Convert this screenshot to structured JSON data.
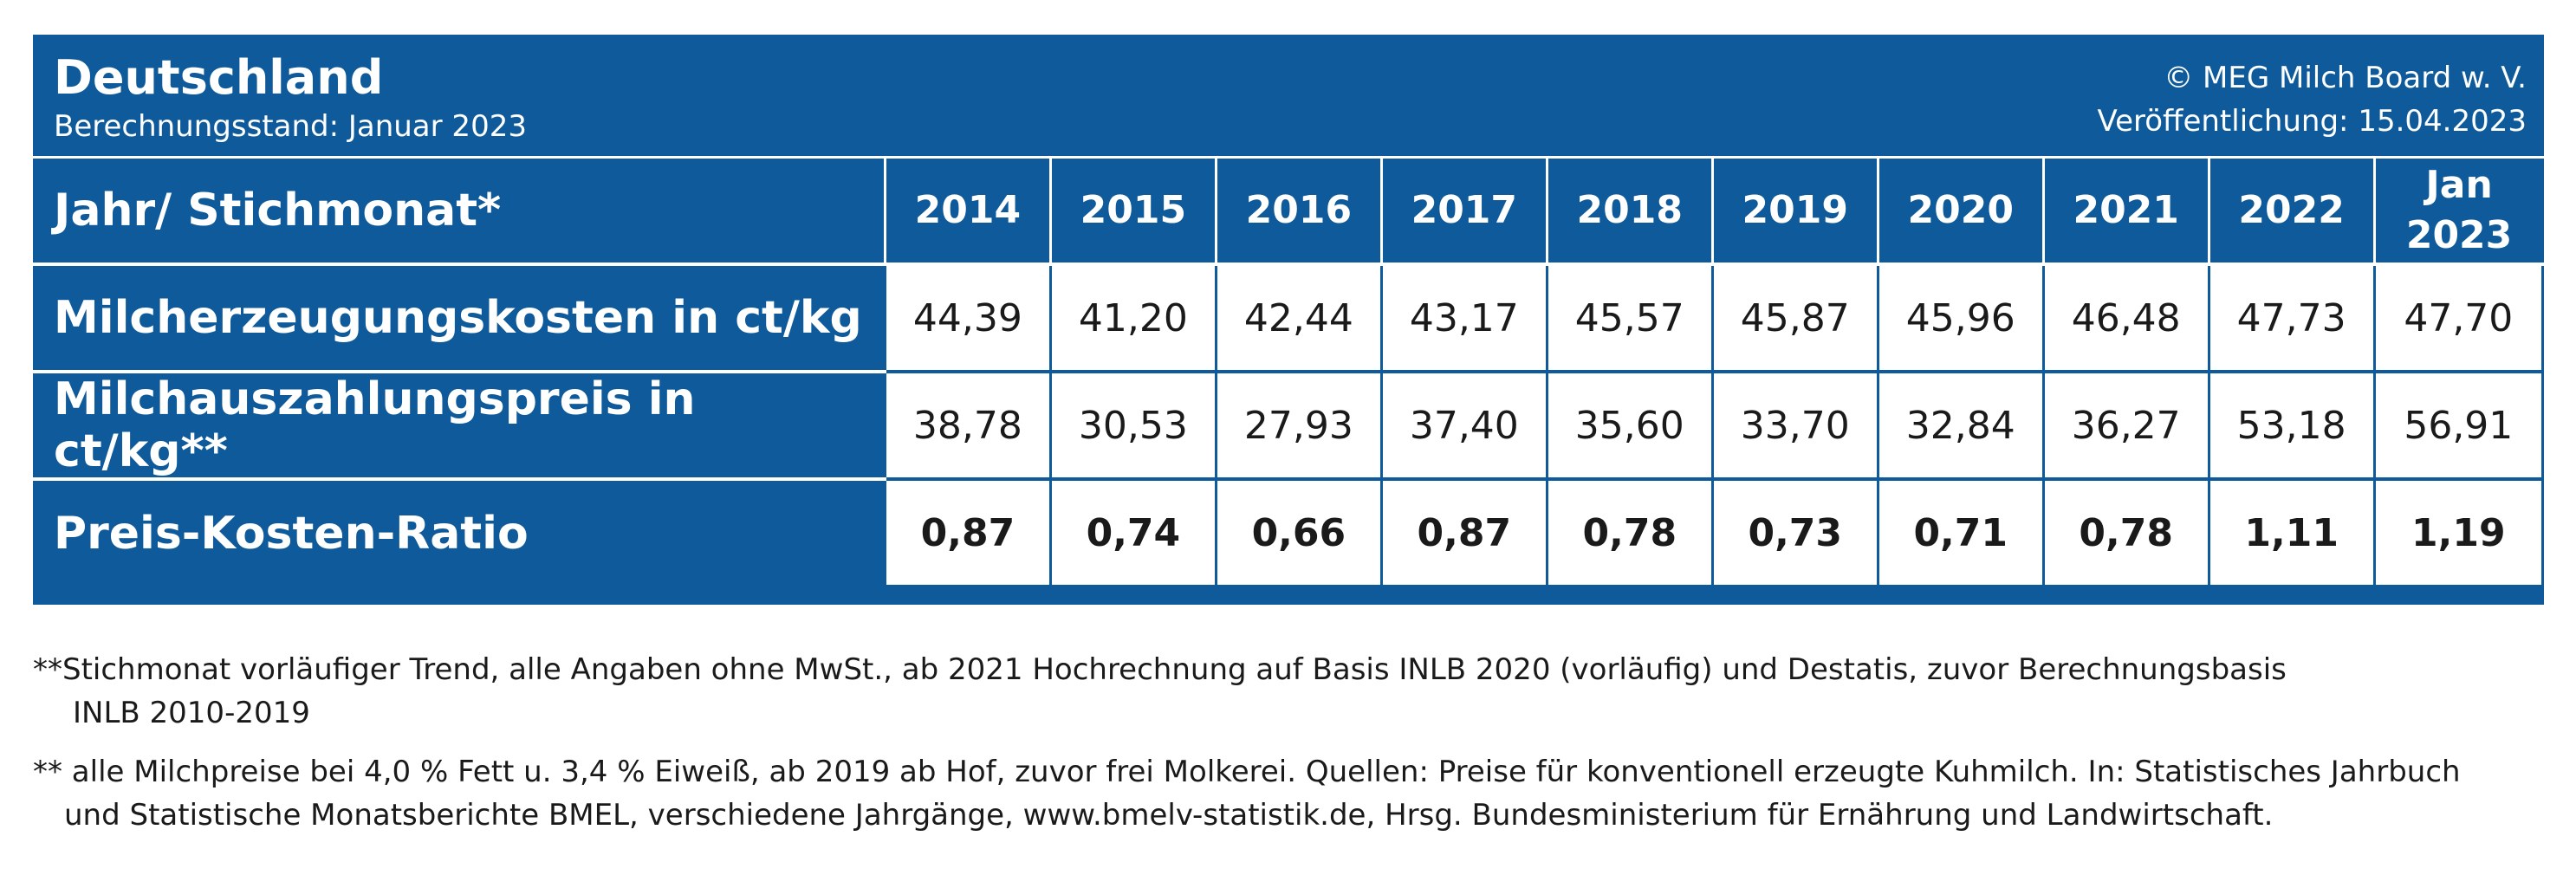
{
  "header": {
    "title": "Deutschland",
    "subtitle": "Berechnungsstand: Januar 2023",
    "copyright": "© MEG Milch Board w. V.",
    "published": "Veröffentlichung: 15.04.2023"
  },
  "table": {
    "corner_label": "Jahr/ Stichmonat*",
    "columns": [
      "2014",
      "2015",
      "2016",
      "2017",
      "2018",
      "2019",
      "2020",
      "2021",
      "2022",
      "Jan 2023"
    ],
    "rows": [
      {
        "label": "Milcherzeugungskosten in ct/kg",
        "values": [
          "44,39",
          "41,20",
          "42,44",
          "43,17",
          "45,57",
          "45,87",
          "45,96",
          "46,48",
          "47,73",
          "47,70"
        ]
      },
      {
        "label": "Milchauszahlungspreis in ct/kg**",
        "values": [
          "38,78",
          "30,53",
          "27,93",
          "37,40",
          "35,60",
          "33,70",
          "32,84",
          "36,27",
          "53,18",
          "56,91"
        ]
      },
      {
        "label": "Preis-Kosten-Ratio",
        "values": [
          "0,87",
          "0,74",
          "0,66",
          "0,87",
          "0,78",
          "0,73",
          "0,71",
          "0,78",
          "1,11",
          "1,19"
        ]
      }
    ]
  },
  "notes": {
    "note1_line1": "**Stichmonat vorläufiger Trend, alle Angaben ohne MwSt., ab 2021 Hochrechnung auf Basis INLB 2020 (vorläufig) und Destatis, zuvor Berechnungsbasis",
    "note1_line2": "INLB 2010-2019",
    "note2_line1": "** alle Milchpreise bei 4,0 % Fett u. 3,4 % Eiweiß, ab 2019 ab Hof, zuvor frei Molkerei. Quellen: Preise für konventionell erzeugte Kuhmilch. In: Statistisches Jahrbuch",
    "note2_line2": "und Statistische Monatsberichte BMEL, verschiedene Jahrgänge, www.bmelv-statistik.de, Hrsg. Bundesministerium für Ernährung und Landwirtschaft."
  },
  "colors": {
    "primary": "#0e5a9a",
    "text": "#1a1a1a",
    "background": "#ffffff"
  }
}
